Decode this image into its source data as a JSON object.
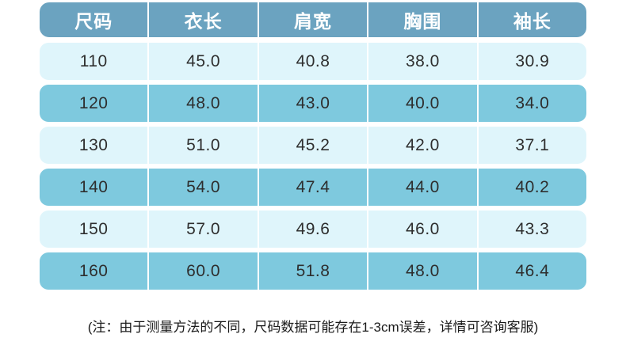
{
  "table": {
    "headers": [
      "尺码",
      "衣长",
      "肩宽",
      "胸围",
      "袖长"
    ],
    "rows": [
      [
        "110",
        "45.0",
        "40.8",
        "38.0",
        "30.9"
      ],
      [
        "120",
        "48.0",
        "43.0",
        "40.0",
        "34.0"
      ],
      [
        "130",
        "51.0",
        "45.2",
        "42.0",
        "37.1"
      ],
      [
        "140",
        "54.0",
        "47.4",
        "44.0",
        "40.2"
      ],
      [
        "150",
        "57.0",
        "49.6",
        "46.0",
        "43.3"
      ],
      [
        "160",
        "60.0",
        "51.8",
        "48.0",
        "46.4"
      ]
    ]
  },
  "note": "(注：由于测量方法的不同，尺码数据可能存在1-3cm误差，详情可咨询客服)",
  "colors": {
    "header_bg": "#6ba3c0",
    "row_light": "#dff5fb",
    "row_dark": "#7ec9de",
    "header_text": "#ffffff",
    "cell_text": "#2e2e2e",
    "separator": "#ffffff"
  },
  "chart_data": {
    "type": "table",
    "title": "",
    "columns": [
      "尺码",
      "衣长",
      "肩宽",
      "胸围",
      "袖长"
    ],
    "rows": [
      [
        110,
        45.0,
        40.8,
        38.0,
        30.9
      ],
      [
        120,
        48.0,
        43.0,
        40.0,
        34.0
      ],
      [
        130,
        51.0,
        45.2,
        42.0,
        37.1
      ],
      [
        140,
        54.0,
        47.4,
        44.0,
        40.2
      ],
      [
        150,
        57.0,
        49.6,
        46.0,
        43.3
      ],
      [
        160,
        60.0,
        51.8,
        48.0,
        46.4
      ]
    ],
    "annotations": [
      "(注：由于测量方法的不同，尺码数据可能存在1-3cm误差，详情可咨询客服)"
    ]
  }
}
